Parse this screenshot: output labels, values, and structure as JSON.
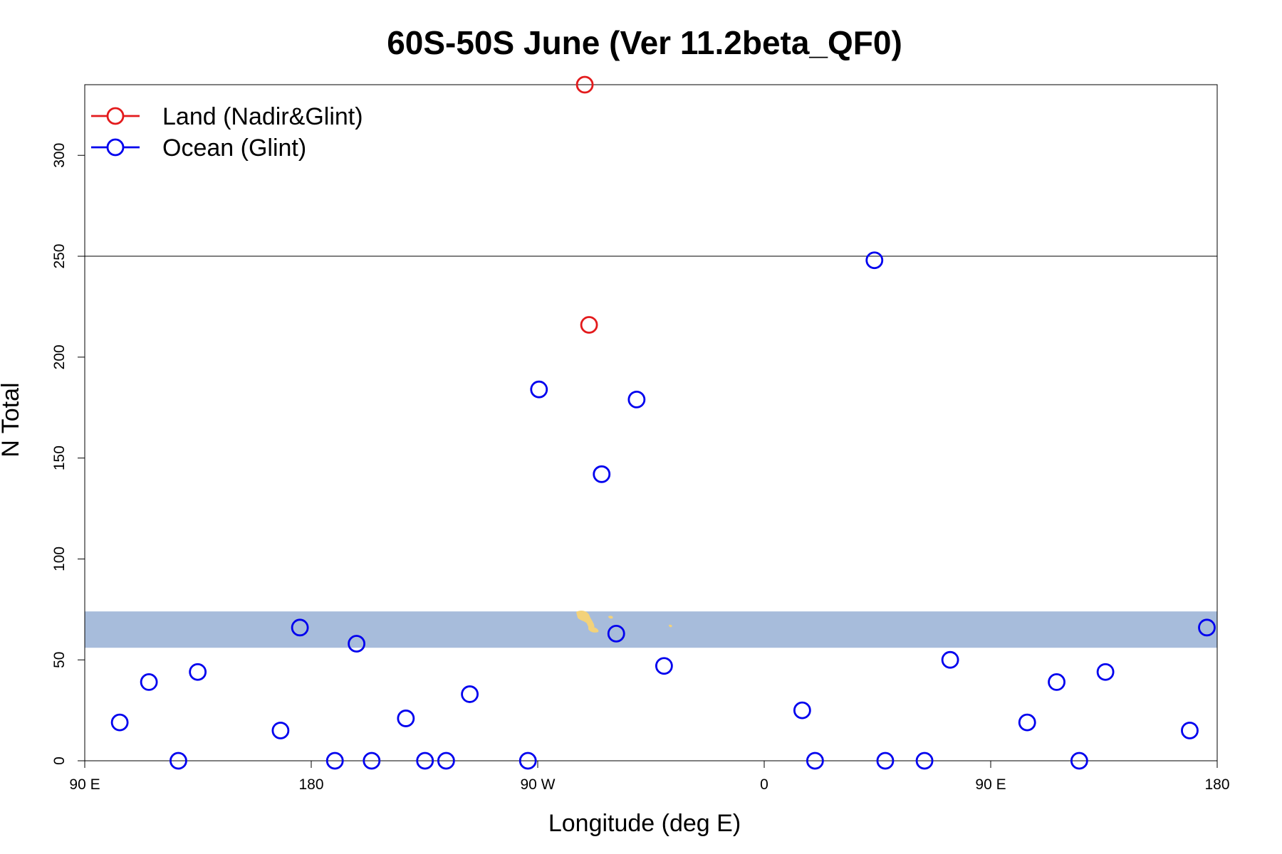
{
  "chart_data": {
    "type": "scatter",
    "title": "60S-50S June (Ver 11.2beta_QF0)",
    "xlabel": "Longitude (deg E)",
    "ylabel": "N Total",
    "xlim": [
      90,
      540
    ],
    "ylim": [
      0,
      335
    ],
    "x_ticks": [
      {
        "value": 90,
        "label": "90 E"
      },
      {
        "value": 180,
        "label": "180"
      },
      {
        "value": 270,
        "label": "90 W"
      },
      {
        "value": 360,
        "label": "0"
      },
      {
        "value": 450,
        "label": "90 E"
      },
      {
        "value": 540,
        "label": "180"
      }
    ],
    "y_ticks": [
      0,
      50,
      100,
      150,
      200,
      250,
      300
    ],
    "reference_line_y": 250,
    "band": {
      "ymin": 56,
      "ymax": 74,
      "color": "#a7bcdb",
      "land_color": "#f3d27a"
    },
    "legend": {
      "position": "top-left",
      "entries": [
        {
          "label": "Land (Nadir&Glint)",
          "color": "#e31a1c"
        },
        {
          "label": "Ocean (Glint)",
          "color": "#0000ee"
        }
      ]
    },
    "series": [
      {
        "name": "Land (Nadir&Glint)",
        "color": "#e31a1c",
        "points": [
          [
            288.7,
            335
          ],
          [
            290.4,
            216
          ]
        ]
      },
      {
        "name": "Ocean (Glint)",
        "color": "#0000ee",
        "points": [
          [
            103.9,
            19
          ],
          [
            115.5,
            39
          ],
          [
            127.2,
            0
          ],
          [
            134.9,
            44
          ],
          [
            167.8,
            15
          ],
          [
            175.5,
            66
          ],
          [
            189.4,
            0
          ],
          [
            198.0,
            58
          ],
          [
            204.0,
            0
          ],
          [
            217.6,
            21
          ],
          [
            225.2,
            0
          ],
          [
            233.6,
            0
          ],
          [
            243.0,
            33
          ],
          [
            266.1,
            0
          ],
          [
            270.5,
            184
          ],
          [
            295.4,
            142
          ],
          [
            301.2,
            63
          ],
          [
            309.3,
            179
          ],
          [
            320.2,
            47
          ],
          [
            375.1,
            25
          ],
          [
            380.2,
            0
          ],
          [
            403.8,
            248
          ],
          [
            408.1,
            0
          ],
          [
            423.7,
            0
          ],
          [
            433.9,
            50
          ],
          [
            464.5,
            19
          ],
          [
            476.2,
            39
          ],
          [
            485.2,
            0
          ],
          [
            495.6,
            44
          ],
          [
            529.1,
            15
          ],
          [
            535.9,
            66
          ]
        ]
      }
    ]
  }
}
